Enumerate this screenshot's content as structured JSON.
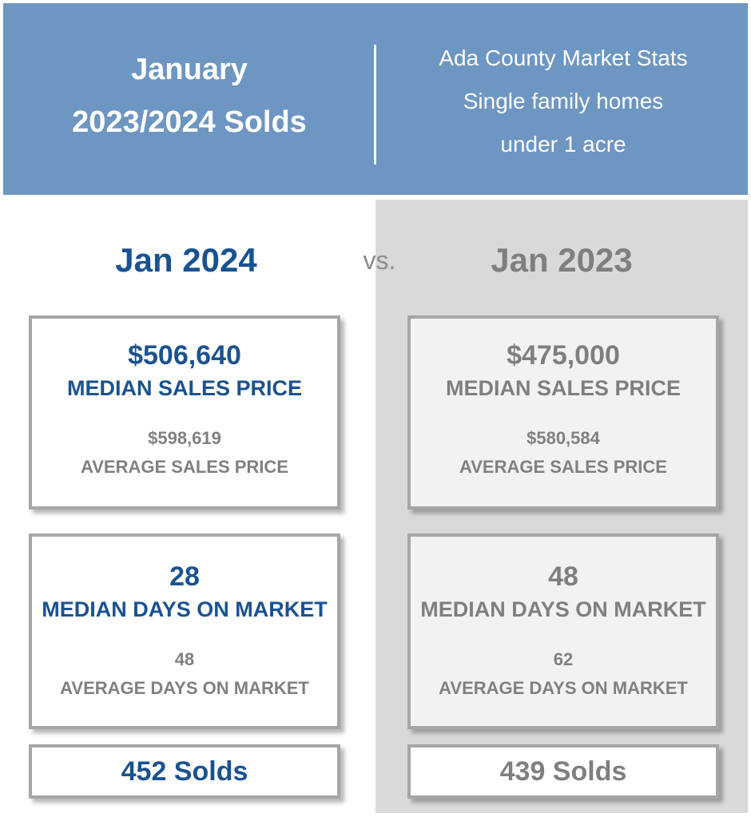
{
  "header": {
    "title_line1": "January",
    "title_line2": "2023/2024 Solds",
    "subtitle_line1": "Ada County Market Stats",
    "subtitle_line2": "Single family homes",
    "subtitle_line3": "under 1 acre"
  },
  "vs_label": "vs.",
  "colors": {
    "header_bg": "#6d96c2",
    "accent_blue": "#1a5291",
    "accent_gray": "#7f7f7f",
    "right_panel_bg": "#d9d9d9"
  },
  "current": {
    "period": "Jan 2024",
    "median_price": "$506,640",
    "median_price_label": "MEDIAN SALES PRICE",
    "avg_price": "$598,619",
    "avg_price_label": "AVERAGE SALES PRICE",
    "median_days": "28",
    "median_days_label": "MEDIAN DAYS ON MARKET",
    "avg_days": "48",
    "avg_days_label": "AVERAGE DAYS ON MARKET",
    "solds": "452 Solds"
  },
  "previous": {
    "period": "Jan 2023",
    "median_price": "$475,000",
    "median_price_label": "MEDIAN SALES PRICE",
    "avg_price": "$580,584",
    "avg_price_label": "AVERAGE SALES PRICE",
    "median_days": "48",
    "median_days_label": "MEDIAN DAYS ON MARKET",
    "avg_days": "62",
    "avg_days_label": "AVERAGE DAYS ON MARKET",
    "solds": "439 Solds"
  }
}
